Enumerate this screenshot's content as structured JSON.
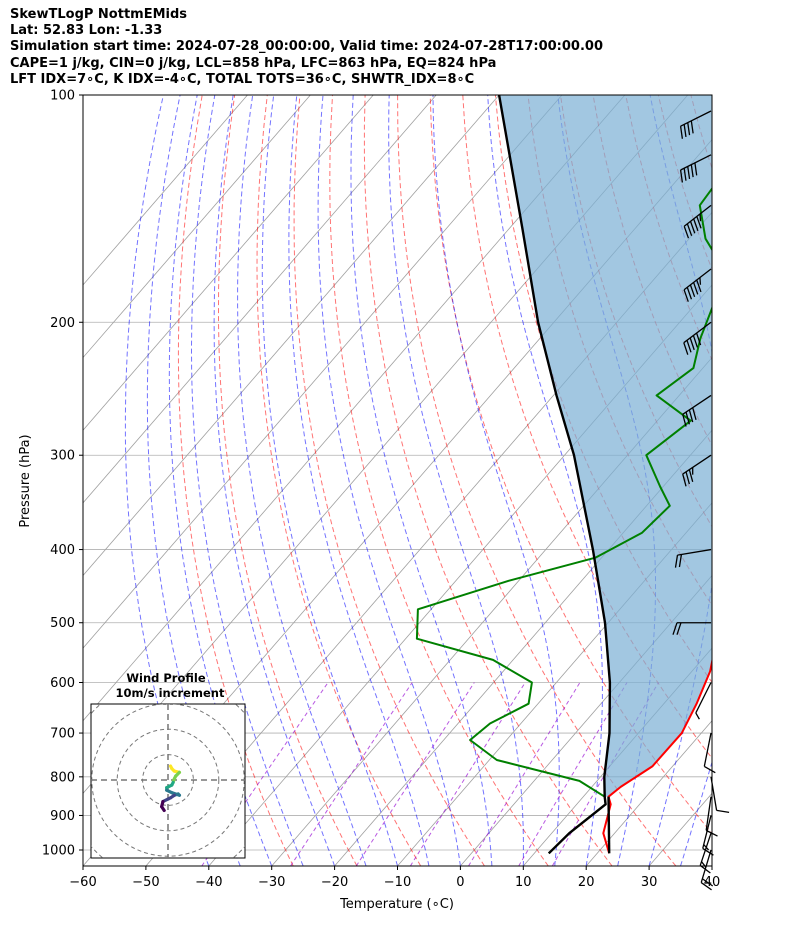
{
  "header": {
    "title": "SkewTLogP NottmEMids",
    "location": "Lat: 52.83   Lon: -1.33",
    "times": "Simulation start time: 2024-07-28_00:00:00, Valid time: 2024-07-28T17:00:00.00",
    "params": "CAPE=1 j/kg, CIN=0 j/kg, LCL=858 hPa, LFC=863 hPa, EQ=824 hPa",
    "indices": "LFT IDX=7∘C, K IDX=-4∘C, TOTAL TOTS=36∘C, SHWTR_IDX=8∘C"
  },
  "chart_data": {
    "type": "line",
    "subtype": "skew-t log-p",
    "xlabel": "Temperature (∘C)",
    "ylabel": "Pressure (hPa)",
    "xlim": [
      -60,
      40
    ],
    "ylim": [
      1050,
      100
    ],
    "y_scale": "log",
    "grid": true,
    "x_ticks": [
      -60,
      -50,
      -40,
      -30,
      -20,
      -10,
      0,
      10,
      20,
      30,
      40
    ],
    "x_tick_labels": [
      "−60",
      "−50",
      "−40",
      "−30",
      "−20",
      "−10",
      "0",
      "10",
      "20",
      "30",
      "40"
    ],
    "y_ticks": [
      1000,
      900,
      800,
      700,
      600,
      500,
      400,
      300,
      200,
      100
    ],
    "y_tick_labels": [
      "1000",
      "900",
      "800",
      "700",
      "600",
      "500",
      "400",
      "300",
      "200",
      "100"
    ],
    "colors": {
      "temperature": "#ff0000",
      "dewpoint": "#008000",
      "parcel": "#000000",
      "cape_fill": "#7bafd4",
      "dry_adiabats": "#ff0000",
      "moist_adiabats": "#0000ff",
      "mixing_ratio": "#9400d3",
      "isotherms": "#808080"
    },
    "series": [
      {
        "key": "temperature",
        "points": [
          [
            1010,
            21.9
          ],
          [
            950,
            18.2
          ],
          [
            870,
            15.4
          ],
          [
            850,
            14.0
          ],
          [
            825,
            14.6
          ],
          [
            775,
            16.8
          ],
          [
            700,
            16.9
          ],
          [
            640,
            15.2
          ],
          [
            580,
            12.9
          ],
          [
            500,
            7.8
          ],
          [
            450,
            4.0
          ],
          [
            400,
            -0.7
          ],
          [
            340,
            -4.3
          ],
          [
            290,
            -11.5
          ],
          [
            250,
            -21.3
          ],
          [
            220,
            -28.8
          ],
          [
            200,
            -33.5
          ],
          [
            185,
            -36.6
          ],
          [
            170,
            -40.3
          ],
          [
            150,
            -45.4
          ],
          [
            140,
            -48.4
          ],
          [
            128,
            -53.6
          ],
          [
            116,
            -58.6
          ],
          [
            100,
            -66.0
          ]
        ]
      },
      {
        "key": "dewpoint",
        "points": [
          [
            1010,
            12.3
          ],
          [
            950,
            12.8
          ],
          [
            870,
            14.6
          ],
          [
            850,
            13.4
          ],
          [
            810,
            7.2
          ],
          [
            760,
            -8.8
          ],
          [
            715,
            -15.8
          ],
          [
            680,
            -14.9
          ],
          [
            640,
            -11.5
          ],
          [
            600,
            -13.9
          ],
          [
            560,
            -23.2
          ],
          [
            525,
            -38.2
          ],
          [
            480,
            -42.1
          ],
          [
            440,
            -31.6
          ],
          [
            410,
            -21.0
          ],
          [
            380,
            -17.0
          ],
          [
            350,
            -16.3
          ],
          [
            330,
            -20.5
          ],
          [
            300,
            -27.0
          ],
          [
            270,
            -24.7
          ],
          [
            250,
            -33.6
          ],
          [
            230,
            -31.5
          ],
          [
            210,
            -34.5
          ],
          [
            190,
            -37.0
          ],
          [
            170,
            -40.3
          ],
          [
            155,
            -47.4
          ],
          [
            140,
            -52.9
          ],
          [
            130,
            -53.4
          ],
          [
            120,
            -55.0
          ],
          [
            100,
            -61.5
          ]
        ]
      },
      {
        "key": "parcel",
        "points": [
          [
            1010,
            12.3
          ],
          [
            950,
            12.8
          ],
          [
            870,
            14.6
          ],
          [
            850,
            13.4
          ],
          [
            800,
            10.6
          ],
          [
            700,
            5.4
          ],
          [
            600,
            -1.5
          ],
          [
            500,
            -10.5
          ],
          [
            400,
            -22.5
          ],
          [
            300,
            -38.5
          ],
          [
            250,
            -49.5
          ],
          [
            200,
            -62.5
          ],
          [
            150,
            -78.0
          ],
          [
            100,
            -100.0
          ]
        ]
      }
    ],
    "parcel_surface_leg": [
      [
        1010,
        21.9
      ],
      [
        850,
        14.0
      ]
    ],
    "wind_barbs": [
      {
        "pressure": 1000,
        "u": 3,
        "v": 10
      },
      {
        "pressure": 950,
        "u": 3,
        "v": 9
      },
      {
        "pressure": 900,
        "u": 2,
        "v": 8
      },
      {
        "pressure": 850,
        "u": 1,
        "v": 7
      },
      {
        "pressure": 800,
        "u": -1,
        "v": 6
      },
      {
        "pressure": 700,
        "u": 1,
        "v": 5
      },
      {
        "pressure": 600,
        "u": 2,
        "v": 4
      },
      {
        "pressure": 500,
        "u": 10,
        "v": 0
      },
      {
        "pressure": 400,
        "u": 12,
        "v": 2
      },
      {
        "pressure": 300,
        "u": 15,
        "v": 10
      },
      {
        "pressure": 250,
        "u": 18,
        "v": 12
      },
      {
        "pressure": 200,
        "u": 20,
        "v": 15
      },
      {
        "pressure": 170,
        "u": 22,
        "v": 17
      },
      {
        "pressure": 140,
        "u": 23,
        "v": 18
      },
      {
        "pressure": 120,
        "u": 24,
        "v": 12
      },
      {
        "pressure": 105,
        "u": 20,
        "v": 10
      }
    ],
    "hodograph": {
      "title": "Wind Profile",
      "subtitle": "10m/s increment",
      "rings_ms": [
        10,
        20,
        30,
        40
      ],
      "points_uv": [
        [
          2,
          -11
        ],
        [
          3,
          -9
        ],
        [
          5,
          -7
        ],
        [
          9,
          -6
        ],
        [
          7,
          -4
        ],
        [
          6,
          -3
        ],
        [
          5,
          -1
        ],
        [
          4,
          2
        ],
        [
          3,
          4
        ],
        [
          1,
          5
        ],
        [
          -1,
          6
        ],
        [
          -1,
          8
        ],
        [
          3,
          10
        ],
        [
          9,
          12
        ],
        [
          8,
          11
        ],
        [
          5,
          12
        ],
        [
          2,
          14
        ],
        [
          0,
          15
        ],
        [
          -4,
          17
        ],
        [
          -5,
          21
        ],
        [
          -3,
          24
        ]
      ]
    }
  }
}
